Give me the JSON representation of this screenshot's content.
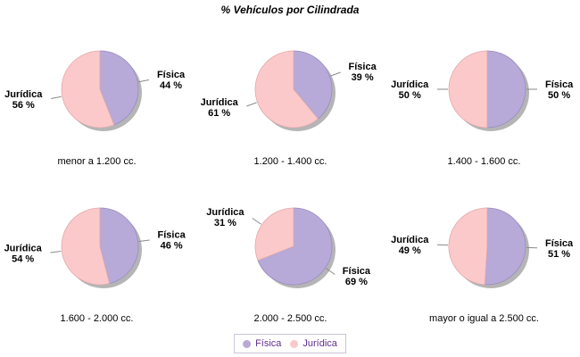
{
  "title": "% Vehículos por Cilindrada",
  "chart_data": {
    "type": "pie",
    "title": "% Vehículos por Cilindrada",
    "layout": "grid of 6 pies, 3 columns x 2 rows",
    "legend_position": "bottom",
    "value_suffix": " %",
    "start_angle_deg": 0,
    "direction": "clockwise",
    "series": [
      {
        "name": "Física",
        "color": "#b7aad8",
        "edge": "#998bc2"
      },
      {
        "name": "Jurídica",
        "color": "#fbc9ca",
        "edge": "#e2a9ab"
      }
    ],
    "shadow_color": "#a2a2a2",
    "label_line_color": "#8a8a8a",
    "pies": [
      {
        "caption": "menor a 1.200 cc.",
        "slices": [
          {
            "label": "Física",
            "pct": 44
          },
          {
            "label": "Jurídica",
            "pct": 56
          }
        ]
      },
      {
        "caption": "1.200 - 1.400 cc.",
        "slices": [
          {
            "label": "Física",
            "pct": 39
          },
          {
            "label": "Jurídica",
            "pct": 61
          }
        ]
      },
      {
        "caption": "1.400 - 1.600 cc.",
        "slices": [
          {
            "label": "Física",
            "pct": 50
          },
          {
            "label": "Jurídica",
            "pct": 50
          }
        ]
      },
      {
        "caption": "1.600 - 2.000 cc.",
        "slices": [
          {
            "label": "Física",
            "pct": 46
          },
          {
            "label": "Jurídica",
            "pct": 54
          }
        ]
      },
      {
        "caption": "2.000 - 2.500 cc.",
        "slices": [
          {
            "label": "Física",
            "pct": 69
          },
          {
            "label": "Jurídica",
            "pct": 31
          }
        ]
      },
      {
        "caption": "mayor o igual a 2.500 cc.",
        "slices": [
          {
            "label": "Física",
            "pct": 51
          },
          {
            "label": "Jurídica",
            "pct": 49
          }
        ]
      }
    ]
  },
  "legend": {
    "text_color": "#61308f",
    "border_color": "#c9c6d8",
    "items": [
      {
        "label": "Física",
        "color": "#b7aad8"
      },
      {
        "label": "Jurídica",
        "color": "#fbc9ca"
      }
    ]
  }
}
